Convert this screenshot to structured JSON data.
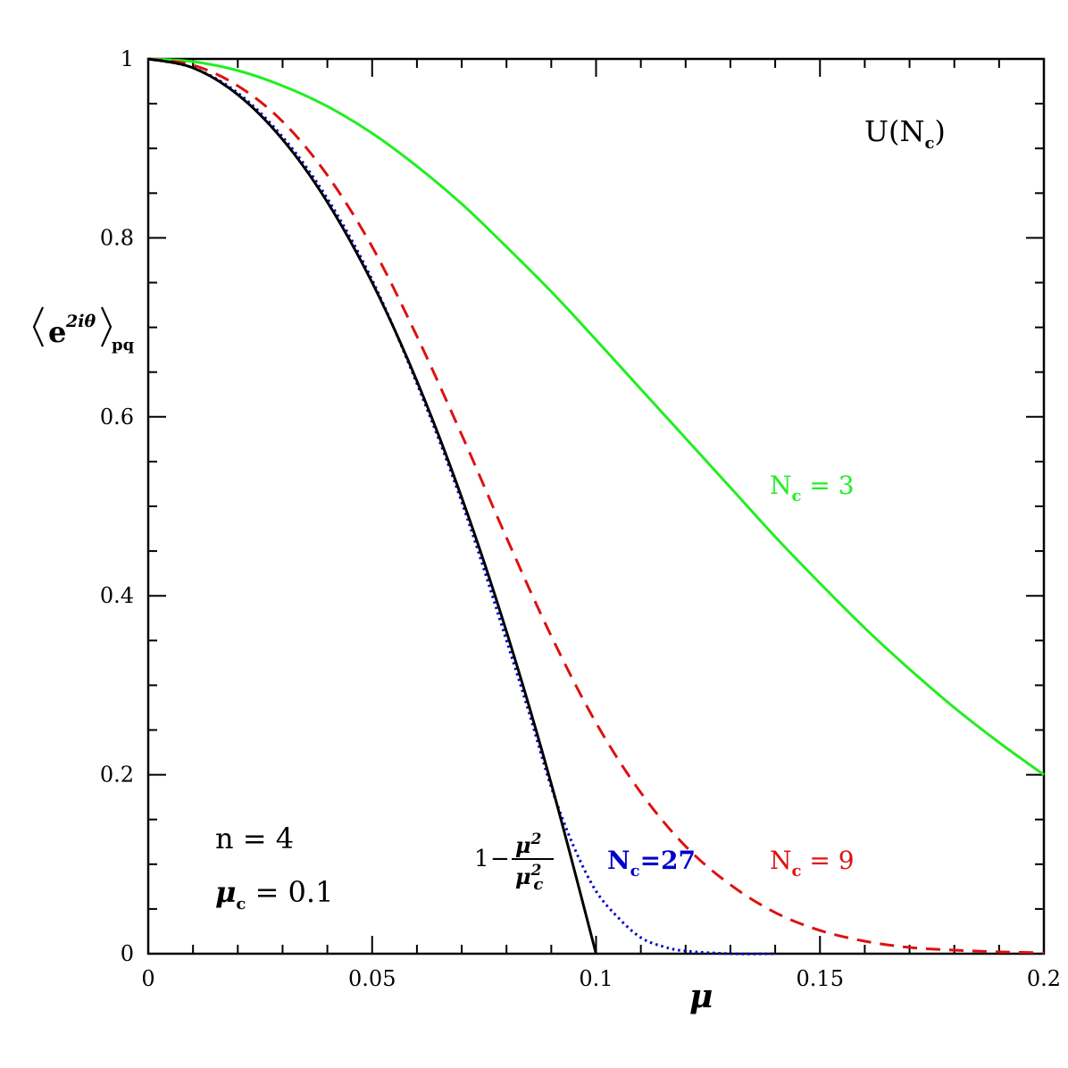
{
  "chart_data": {
    "type": "line",
    "xlabel": "μ",
    "ylabel": {
      "base": "e",
      "exponent": "2iθ",
      "subscript": "pq"
    },
    "xlim": [
      0,
      0.2
    ],
    "ylim": [
      0,
      1
    ],
    "x_ticks": [
      0,
      0.05,
      0.1,
      0.15,
      0.2
    ],
    "x_tick_labels": [
      "0",
      "0.05",
      "0.1",
      "0.15",
      "0.2"
    ],
    "y_ticks": [
      0,
      0.2,
      0.4,
      0.6,
      0.8,
      1
    ],
    "y_tick_labels": [
      "0",
      "0.2",
      "0.4",
      "0.6",
      "0.8",
      "1"
    ],
    "grid": false,
    "series": [
      {
        "name": "1 − μ²/μc²",
        "color": "#000000",
        "style": "solid",
        "x": [
          0,
          0.01,
          0.02,
          0.03,
          0.04,
          0.05,
          0.06,
          0.07,
          0.08,
          0.09,
          0.1
        ],
        "y": [
          1,
          0.99,
          0.96,
          0.91,
          0.84,
          0.75,
          0.64,
          0.51,
          0.36,
          0.19,
          0
        ]
      },
      {
        "name": "Nc=27",
        "color": "#0000cc",
        "style": "dotted",
        "x": [
          0,
          0.01,
          0.02,
          0.03,
          0.04,
          0.05,
          0.06,
          0.07,
          0.08,
          0.085,
          0.09,
          0.095,
          0.1,
          0.105,
          0.11,
          0.115,
          0.12,
          0.13,
          0.14
        ],
        "y": [
          1,
          0.99,
          0.962,
          0.913,
          0.844,
          0.753,
          0.637,
          0.505,
          0.35,
          0.27,
          0.186,
          0.12,
          0.07,
          0.04,
          0.018,
          0.008,
          0.003,
          0,
          0
        ]
      },
      {
        "name": "Nc = 9",
        "color": "#dd1111",
        "style": "dashed",
        "x": [
          0,
          0.01,
          0.02,
          0.03,
          0.04,
          0.05,
          0.06,
          0.07,
          0.08,
          0.09,
          0.1,
          0.11,
          0.12,
          0.13,
          0.14,
          0.15,
          0.16,
          0.17,
          0.18,
          0.19,
          0.2
        ],
        "y": [
          1,
          0.993,
          0.97,
          0.93,
          0.87,
          0.79,
          0.69,
          0.58,
          0.465,
          0.355,
          0.258,
          0.18,
          0.12,
          0.077,
          0.046,
          0.026,
          0.014,
          0.007,
          0.004,
          0.002,
          0.001
        ]
      },
      {
        "name": "Nc = 3",
        "color": "#22ee22",
        "style": "solid",
        "x": [
          0,
          0.01,
          0.02,
          0.03,
          0.04,
          0.05,
          0.06,
          0.07,
          0.08,
          0.09,
          0.1,
          0.11,
          0.12,
          0.13,
          0.14,
          0.15,
          0.16,
          0.17,
          0.18,
          0.19,
          0.2
        ],
        "y": [
          1,
          0.997,
          0.987,
          0.97,
          0.947,
          0.917,
          0.88,
          0.838,
          0.79,
          0.74,
          0.686,
          0.631,
          0.576,
          0.521,
          0.466,
          0.414,
          0.364,
          0.318,
          0.275,
          0.236,
          0.2
        ]
      }
    ],
    "annotations": {
      "group": "U(N",
      "group_sub": "c",
      "group_close": ")",
      "n_line": "n  =  4",
      "mu_c_symbol": "μ",
      "mu_c_sub": "c",
      "mu_c_value": "  =  0.1",
      "nc3_label": "N",
      "nc3_sub": "c",
      "nc3_value": "  =  3",
      "nc9_label": "N",
      "nc9_sub": "c",
      "nc9_value": "  =  9",
      "nc27_label": "N",
      "nc27_sub": "c",
      "nc27_value": "=27",
      "formula_one": "1",
      "formula_minus": "−",
      "formula_num": "μ",
      "formula_num_sup": "2",
      "formula_den": "μ",
      "formula_den_sup": "2",
      "formula_den_sub": "c"
    }
  }
}
